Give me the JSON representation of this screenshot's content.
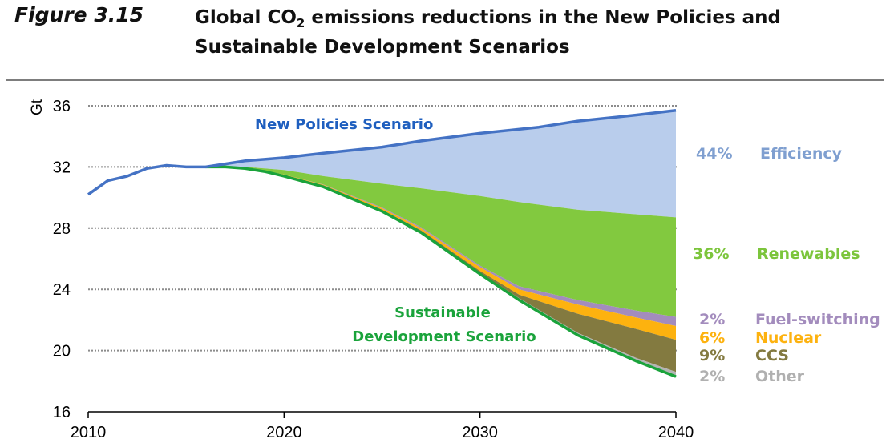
{
  "figure": {
    "label": "Figure 3.15",
    "arrow_color": "#2aa33a",
    "title_part1": "Global CO",
    "title_sub": "2",
    "title_part2": " emissions reductions in the New Policies and",
    "title_line2": "Sustainable Development Scenarios"
  },
  "chart_data": {
    "type": "area",
    "title": "Global CO2 emissions reductions in the New Policies and Sustainable Development Scenarios",
    "xlabel": "",
    "ylabel": "Gt",
    "xlim": [
      2010,
      2040
    ],
    "ylim": [
      16,
      36
    ],
    "x_ticks": [
      "2010",
      "2020",
      "2030",
      "2040"
    ],
    "y_ticks": [
      "16",
      "20",
      "24",
      "28",
      "32",
      "36"
    ],
    "grid": "horizontal dotted",
    "lines": [
      {
        "name": "New Policies Scenario",
        "color": "#4472c4",
        "label_color": "#1f5fbf",
        "x": [
          2010,
          2011,
          2012,
          2013,
          2014,
          2015,
          2016,
          2017,
          2018,
          2019,
          2020,
          2022,
          2025,
          2027,
          2030,
          2033,
          2035,
          2038,
          2040
        ],
        "y": [
          30.2,
          31.1,
          31.4,
          31.9,
          32.1,
          32.0,
          32.0,
          32.2,
          32.4,
          32.5,
          32.6,
          32.9,
          33.3,
          33.7,
          34.2,
          34.6,
          35.0,
          35.4,
          35.7
        ]
      },
      {
        "name": "Sustainable Development Scenario",
        "color": "#1aa33b",
        "label_color": "#1aa33b",
        "x": [
          2016,
          2017,
          2018,
          2019,
          2020,
          2022,
          2025,
          2027,
          2030,
          2032,
          2035,
          2038,
          2040
        ],
        "y": [
          32.0,
          32.0,
          31.9,
          31.7,
          31.4,
          30.7,
          29.1,
          27.7,
          25.0,
          23.3,
          21.0,
          19.3,
          18.3
        ]
      }
    ],
    "x_bands": [
      2016,
      2017,
      2018,
      2019,
      2020,
      2022,
      2025,
      2027,
      2030,
      2032,
      2035,
      2038,
      2040
    ],
    "bands": [
      {
        "name": "Efficiency",
        "share": "44%",
        "color": "#b9cdec",
        "label_color": "#7f9fd0",
        "top_line": "New Policies Scenario",
        "bottom": [
          32.0,
          32.0,
          32.0,
          31.9,
          31.8,
          31.4,
          30.9,
          30.6,
          30.1,
          29.7,
          29.2,
          28.9,
          28.7
        ]
      },
      {
        "name": "Renewables",
        "share": "36%",
        "color": "#82c93f",
        "label_color": "#7cc53c",
        "bottom": [
          32.0,
          32.0,
          31.9,
          31.75,
          31.5,
          30.85,
          29.35,
          28.05,
          25.55,
          24.2,
          23.3,
          22.6,
          22.2
        ]
      },
      {
        "name": "Fuel-switching",
        "share": "2%",
        "color": "#a38cbd",
        "label_color": "#a38cbd",
        "bottom": [
          32.0,
          32.0,
          31.9,
          31.75,
          31.5,
          30.83,
          29.3,
          27.98,
          25.45,
          24.0,
          23.0,
          22.15,
          21.6
        ]
      },
      {
        "name": "Nuclear",
        "share": "6%",
        "color": "#fdb20f",
        "label_color": "#fdb20f",
        "bottom": [
          32.0,
          32.0,
          31.9,
          31.72,
          31.45,
          30.78,
          29.2,
          27.85,
          25.2,
          23.65,
          22.4,
          21.4,
          20.7
        ]
      },
      {
        "name": "CCS",
        "share": "9%",
        "color": "#837a40",
        "label_color": "#837a40",
        "bottom": [
          32.0,
          32.0,
          31.9,
          31.7,
          31.42,
          30.74,
          29.14,
          27.76,
          25.08,
          23.42,
          21.15,
          19.5,
          18.6
        ]
      },
      {
        "name": "Other",
        "share": "2%",
        "color": "#b4b4b4",
        "label_color": "#b0b0b0",
        "bottom": [
          32.0,
          32.0,
          31.9,
          31.7,
          31.4,
          30.7,
          29.1,
          27.7,
          25.0,
          23.3,
          21.0,
          19.3,
          18.3
        ]
      }
    ],
    "annotations": [
      "New Policies Scenario",
      "Sustainable Development Scenario"
    ],
    "legend": "right, aligned with band ends at 2040"
  },
  "labels": {
    "nps_label": "New Policies Scenario",
    "sds_line1": "Sustainable",
    "sds_line2": "Development  Scenario"
  }
}
